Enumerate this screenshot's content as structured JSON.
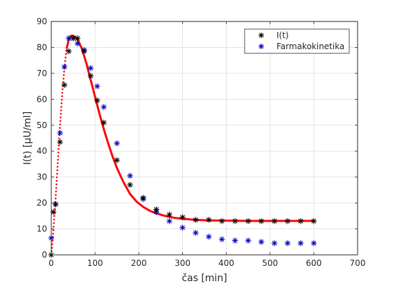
{
  "chart_data": {
    "type": "scatter",
    "xlabel": "čas [min]",
    "ylabel": "I(t) [μU/ml]",
    "xlim": [
      0,
      700
    ],
    "ylim": [
      0,
      90
    ],
    "xticks": [
      "0",
      "100",
      "200",
      "300",
      "400",
      "500",
      "600",
      "700"
    ],
    "yticks": [
      "0",
      "10",
      "20",
      "30",
      "40",
      "50",
      "60",
      "70",
      "80",
      "90"
    ],
    "grid": true,
    "legend_position": "top-right",
    "series": [
      {
        "name": "I(t)",
        "marker": "asterisk",
        "color": "#000000",
        "x": [
          0,
          5,
          10,
          20,
          30,
          40,
          50,
          60,
          75,
          90,
          105,
          120,
          150,
          180,
          210,
          240,
          270,
          300,
          330,
          360,
          390,
          420,
          450,
          480,
          510,
          540,
          570,
          600
        ],
        "y": [
          0,
          16.5,
          19.5,
          43.5,
          65.5,
          78.5,
          83.5,
          83.5,
          78.5,
          69,
          59.5,
          51,
          36.5,
          27,
          22,
          17.5,
          15.5,
          14.5,
          13.5,
          13.5,
          13,
          13,
          13,
          13,
          13,
          13,
          13,
          13
        ]
      },
      {
        "name": "Farmakokinetika",
        "marker": "asterisk",
        "color": "#0000c8",
        "x": [
          0,
          10,
          20,
          30,
          40,
          50,
          60,
          75,
          90,
          105,
          120,
          150,
          180,
          210,
          240,
          270,
          300,
          330,
          360,
          390,
          420,
          450,
          480,
          510,
          540,
          570,
          600
        ],
        "y": [
          6.5,
          19.5,
          47,
          72.5,
          83.5,
          83.5,
          81.5,
          79,
          72,
          65,
          57,
          43,
          30.5,
          21.5,
          16.5,
          13,
          10.5,
          8.5,
          7,
          6,
          5.5,
          5.5,
          5,
          4.5,
          4.5,
          4.5,
          4.5
        ]
      }
    ],
    "fitted_curve": {
      "color": "#ff0000",
      "dotted_until_x": 35,
      "x": [
        0,
        5,
        10,
        15,
        20,
        25,
        30,
        35,
        40,
        45,
        50,
        55,
        60,
        70,
        80,
        90,
        100,
        110,
        120,
        130,
        140,
        150,
        165,
        180,
        195,
        210,
        225,
        240,
        260,
        280,
        300,
        330,
        360,
        400,
        450,
        500,
        550,
        600
      ],
      "y": [
        0,
        10,
        22,
        36,
        50,
        62,
        72,
        79.5,
        83,
        84.5,
        84.5,
        84,
        83,
        79.5,
        74,
        67.5,
        61,
        54.5,
        48.5,
        43,
        38,
        33.5,
        28,
        23.5,
        20.5,
        18.5,
        17,
        16,
        15,
        14.3,
        13.9,
        13.5,
        13.3,
        13.2,
        13.1,
        13.1,
        13.1,
        13.1
      ]
    }
  }
}
